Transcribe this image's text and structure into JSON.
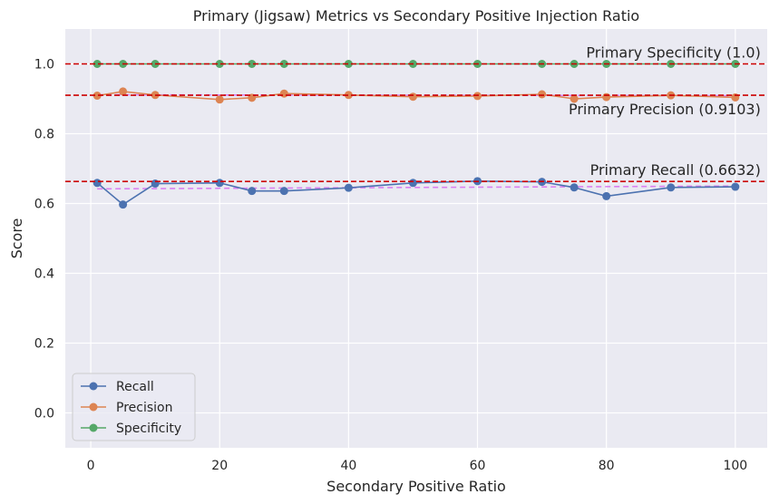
{
  "chart_data": {
    "type": "line",
    "title": "Primary (Jigsaw) Metrics vs Secondary Positive Injection Ratio",
    "xlabel": "Secondary Positive Ratio",
    "ylabel": "Score",
    "xlim": [
      -3.95,
      104.95
    ],
    "ylim": [
      -0.1,
      1.1
    ],
    "xticks": [
      0,
      20,
      40,
      60,
      80,
      100
    ],
    "yticks": [
      0.0,
      0.2,
      0.4,
      0.6,
      0.8,
      1.0
    ],
    "xtick_labels": [
      "0",
      "20",
      "40",
      "60",
      "80",
      "100"
    ],
    "ytick_labels": [
      "0.0",
      "0.2",
      "0.4",
      "0.6",
      "0.8",
      "1.0"
    ],
    "grid": true,
    "legend_position": "lower-left",
    "x": [
      1,
      5,
      10,
      20,
      25,
      30,
      40,
      50,
      60,
      70,
      75,
      80,
      90,
      100
    ],
    "series": [
      {
        "name": "Recall",
        "color": "#4c72b0",
        "values": [
          0.659,
          0.597,
          0.657,
          0.659,
          0.636,
          0.636,
          0.645,
          0.659,
          0.664,
          0.662,
          0.646,
          0.621,
          0.646,
          0.648
        ]
      },
      {
        "name": "Precision",
        "color": "#dd8452",
        "values": [
          0.909,
          0.921,
          0.911,
          0.898,
          0.903,
          0.915,
          0.911,
          0.906,
          0.908,
          0.913,
          0.9,
          0.905,
          0.91,
          0.904
        ]
      },
      {
        "name": "Specificity",
        "color": "#55a868",
        "values": [
          1.0,
          1.0,
          1.0,
          1.0,
          1.0,
          1.0,
          1.0,
          1.0,
          1.0,
          1.0,
          1.0,
          1.0,
          1.0,
          1.0
        ]
      }
    ],
    "reference_lines": [
      {
        "y": 1.0,
        "color": "#cc0000",
        "label": "Primary Specificity (1.0)",
        "label_anchor_x": 100,
        "label_position": "above"
      },
      {
        "y": 0.9103,
        "color": "#cc0000",
        "label": "Primary Precision (0.9103)",
        "label_anchor_x": 100,
        "label_position": "below"
      },
      {
        "y": 0.6632,
        "color": "#cc0000",
        "label": "Primary Recall (0.6632)",
        "label_anchor_x": 100,
        "label_position": "above"
      }
    ],
    "trend_lines": [
      {
        "color": "#d97ff0",
        "x": [
          1,
          100
        ],
        "values": [
          0.9115,
          0.909
        ]
      },
      {
        "color": "#d97ff0",
        "x": [
          1,
          100
        ],
        "values": [
          0.642,
          0.65
        ]
      }
    ]
  }
}
